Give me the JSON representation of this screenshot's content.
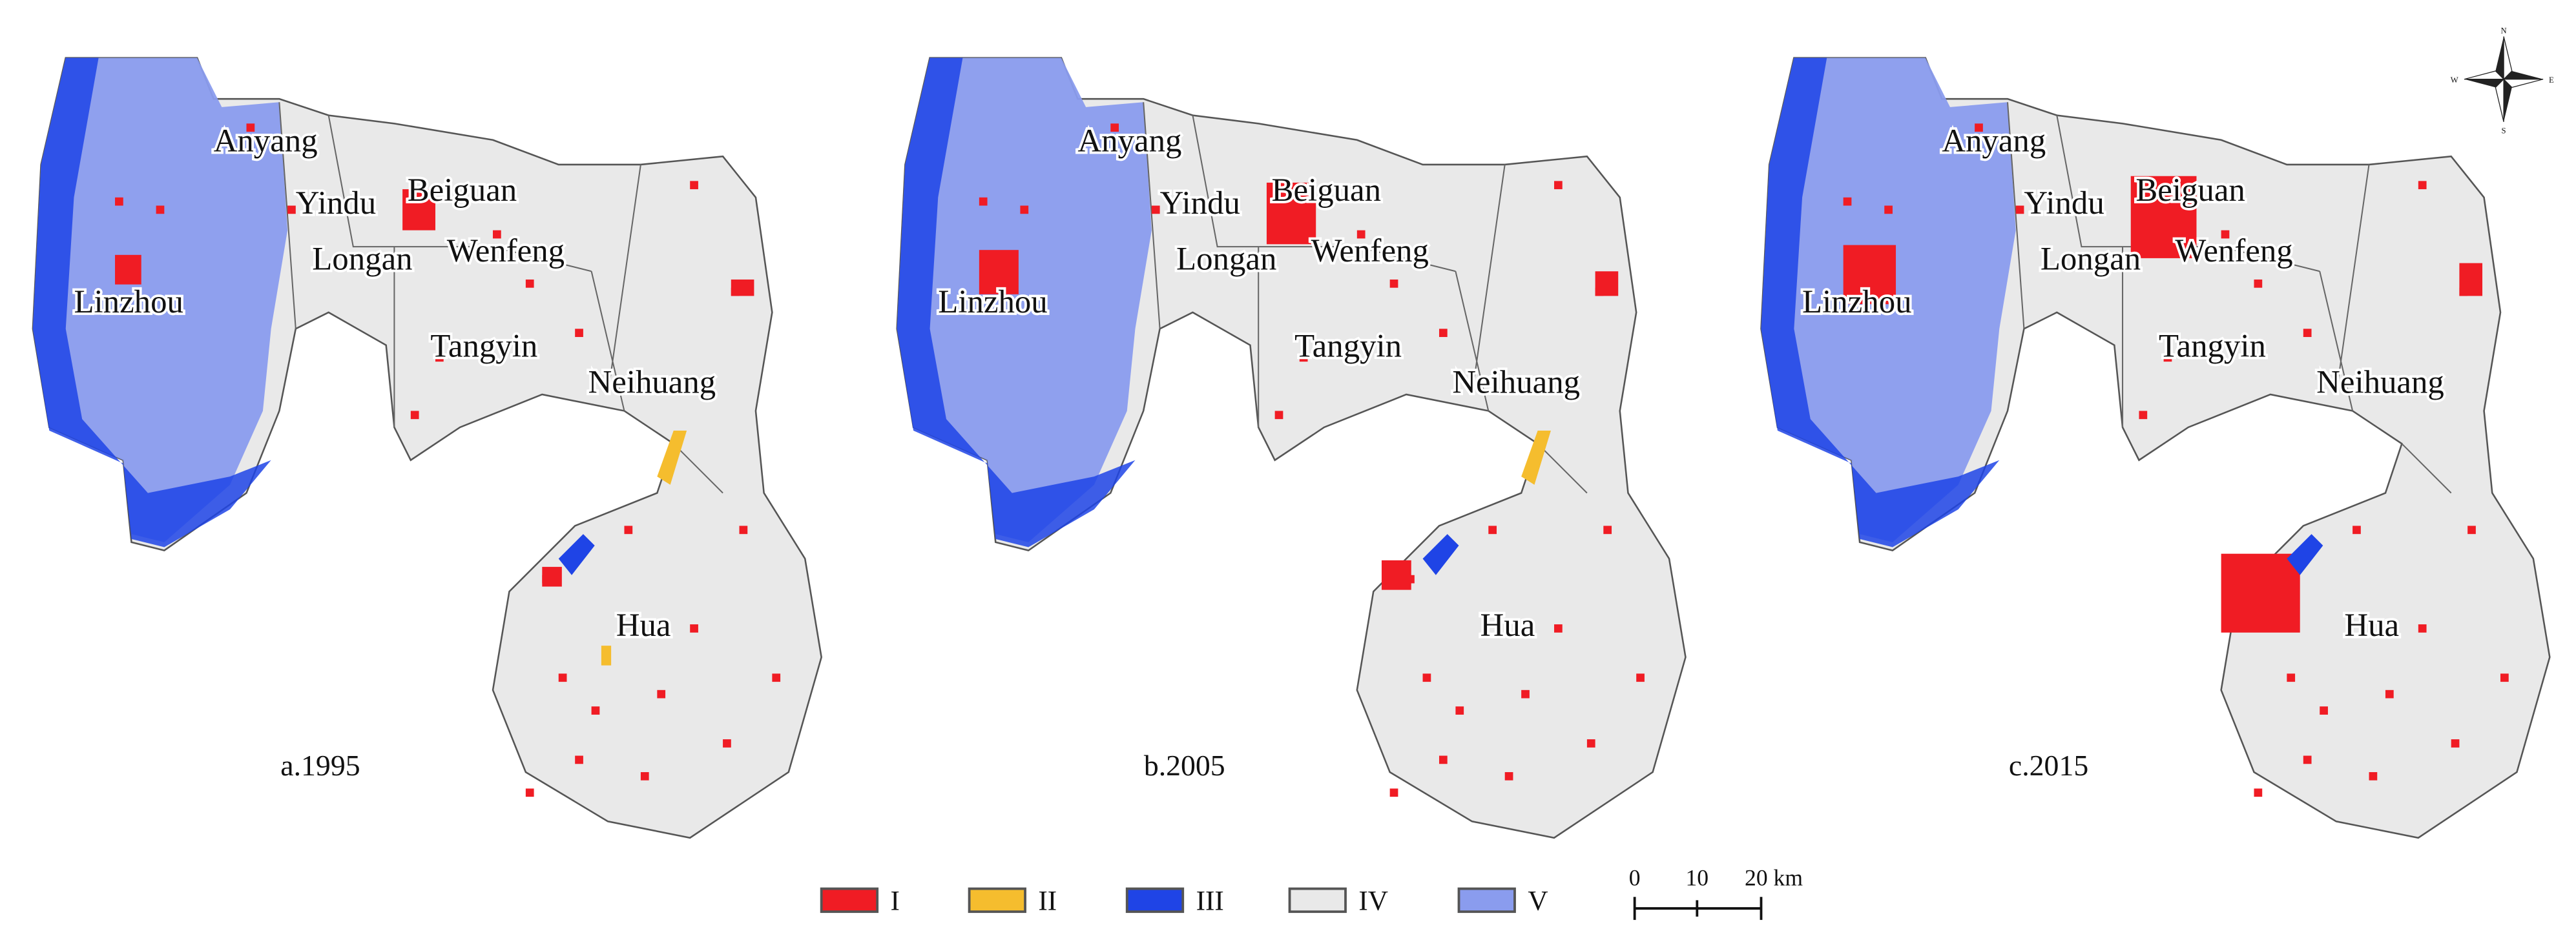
{
  "panels": [
    {
      "caption": "a.1995",
      "labels": [
        "Anyang",
        "Yindu",
        "Beiguan",
        "Longan",
        "Wenfeng",
        "Linzhou",
        "Tangyin",
        "Neihuang",
        "Hua"
      ]
    },
    {
      "caption": "b.2005",
      "labels": [
        "Anyang",
        "Yindu",
        "Beiguan",
        "Longan",
        "Wenfeng",
        "Linzhou",
        "Tangyin",
        "Neihuang",
        "Hua"
      ]
    },
    {
      "caption": "c.2015",
      "labels": [
        "Anyang",
        "Yindu",
        "Beiguan",
        "Longan",
        "Wenfeng",
        "Linzhou",
        "Tangyin",
        "Neihuang",
        "Hua"
      ]
    }
  ],
  "legend": [
    {
      "label": "I",
      "color": "#f01c24"
    },
    {
      "label": "II",
      "color": "#f5bd2e"
    },
    {
      "label": "III",
      "color": "#1f44e6"
    },
    {
      "label": "IV",
      "color": "#e9e9e9"
    },
    {
      "label": "V",
      "color": "#8a9cee"
    }
  ],
  "scale_bar": {
    "labels": [
      "0",
      "10",
      "20 km"
    ]
  },
  "compass": {
    "labels": [
      "N",
      "E",
      "S",
      "W"
    ]
  }
}
